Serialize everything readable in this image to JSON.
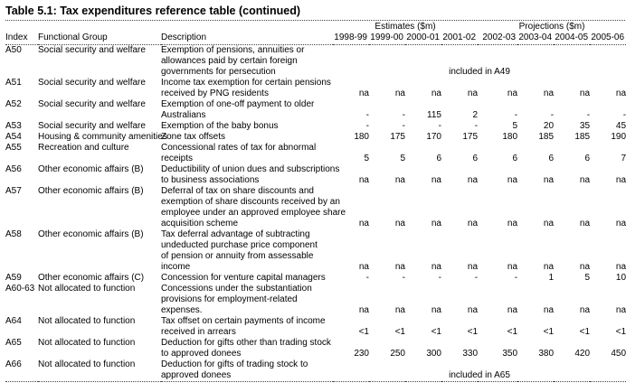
{
  "title": "Table 5.1:  Tax expenditures reference table (continued)",
  "table": {
    "header": {
      "estimates_group": "Estimates ($m)",
      "projections_group": "Projections ($m)",
      "index": "Index",
      "functional_group": "Functional Group",
      "description": "Description",
      "years": [
        "1998-99",
        "1999-00",
        "2000-01",
        "2001-02",
        "2002-03",
        "2003-04",
        "2004-05",
        "2005-06"
      ]
    },
    "rows": [
      {
        "index": "A50",
        "group": "Social security and welfare",
        "description": "Exemption of pensions, annuities or\nallowances paid by certain foreign\ngovernments for persecution",
        "note": "included in A49"
      },
      {
        "index": "A51",
        "group": "Social security and welfare",
        "description": "Income tax exemption for certain pensions\nreceived by PNG residents",
        "values": [
          "na",
          "na",
          "na",
          "na",
          "na",
          "na",
          "na",
          "na"
        ]
      },
      {
        "index": "A52",
        "group": "Social security and welfare",
        "description": "Exemption of one-off payment to older\nAustralians",
        "values": [
          "-",
          "-",
          "115",
          "2",
          "-",
          "-",
          "-",
          "-"
        ]
      },
      {
        "index": "A53",
        "group": "Social security and welfare",
        "description": "Exemption of the baby bonus",
        "values": [
          "-",
          "-",
          "-",
          "-",
          "5",
          "20",
          "35",
          "45"
        ]
      },
      {
        "index": "A54",
        "group": "Housing & community amenities",
        "description": "Zone tax offsets",
        "values": [
          "180",
          "175",
          "170",
          "175",
          "180",
          "185",
          "185",
          "190"
        ]
      },
      {
        "index": "A55",
        "group": "Recreation and culture",
        "description": "Concessional rates of tax for abnormal\nreceipts",
        "values": [
          "5",
          "5",
          "6",
          "6",
          "6",
          "6",
          "6",
          "7"
        ]
      },
      {
        "index": "A56",
        "group": "Other economic affairs (B)",
        "description": "Deductibility of union dues and subscriptions\nto business associations",
        "values": [
          "na",
          "na",
          "na",
          "na",
          "na",
          "na",
          "na",
          "na"
        ]
      },
      {
        "index": "A57",
        "group": "Other economic affairs (B)",
        "description": "Deferral of tax on share discounts and\nexemption of share discounts received by an\nemployee under an approved employee share\nacquisition scheme",
        "values": [
          "na",
          "na",
          "na",
          "na",
          "na",
          "na",
          "na",
          "na"
        ]
      },
      {
        "index": "A58",
        "group": "Other economic affairs (B)",
        "description": "Tax deferral advantage of subtracting\nundeducted purchase price component\nof pension or annuity from assessable\nincome",
        "values": [
          "na",
          "na",
          "na",
          "na",
          "na",
          "na",
          "na",
          "na"
        ]
      },
      {
        "index": "A59",
        "group": "Other economic affairs (C)",
        "description": "Concession for venture capital managers",
        "values": [
          "-",
          "-",
          "-",
          "-",
          "-",
          "1",
          "5",
          "10"
        ]
      },
      {
        "index": "A60-63",
        "group": "Not allocated to function",
        "description": "Concessions under the substantiation\nprovisions for employment-related\nexpenses.",
        "values": [
          "na",
          "na",
          "na",
          "na",
          "na",
          "na",
          "na",
          "na"
        ]
      },
      {
        "index": "A64",
        "group": "Not allocated to function",
        "description": "Tax offset on certain payments of income\nreceived in arrears",
        "values": [
          "<1",
          "<1",
          "<1",
          "<1",
          "<1",
          "<1",
          "<1",
          "<1"
        ]
      },
      {
        "index": "A65",
        "group": "Not allocated to function",
        "description": "Deduction for gifts other than trading stock\nto approved donees",
        "values": [
          "230",
          "250",
          "300",
          "330",
          "350",
          "380",
          "420",
          "450"
        ]
      },
      {
        "index": "A66",
        "group": "Not allocated to function",
        "description": "Deduction for gifts of trading stock to\napproved donees",
        "note": "included in A65"
      }
    ]
  }
}
